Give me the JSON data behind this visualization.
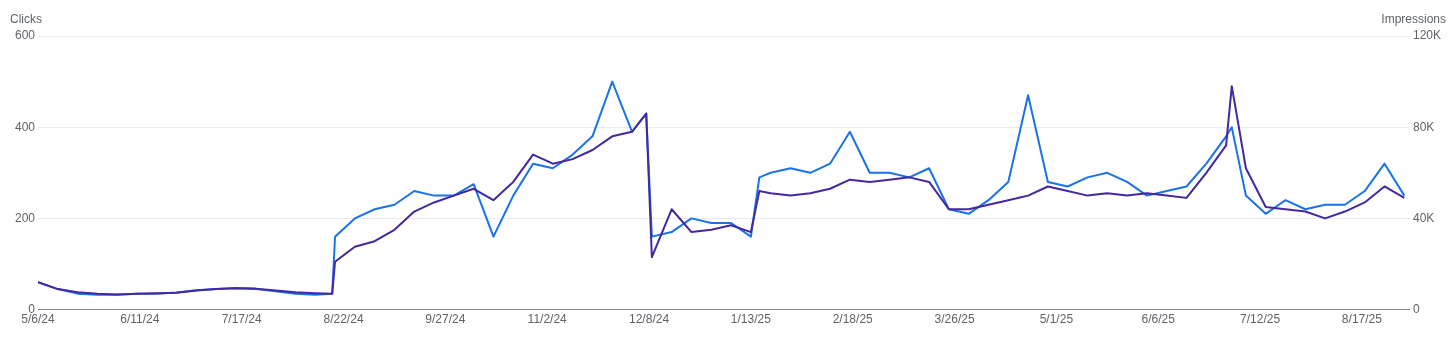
{
  "chart_data": {
    "type": "line",
    "ylabel": "Clicks",
    "y2label": "Impressions",
    "x": [
      "2024-05-06",
      "2024-05-13",
      "2024-05-20",
      "2024-05-27",
      "2024-06-03",
      "2024-06-10",
      "2024-06-17",
      "2024-06-24",
      "2024-07-01",
      "2024-07-08",
      "2024-07-15",
      "2024-07-22",
      "2024-07-29",
      "2024-08-05",
      "2024-08-12",
      "2024-08-18",
      "2024-08-19",
      "2024-08-26",
      "2024-09-02",
      "2024-09-09",
      "2024-09-16",
      "2024-09-23",
      "2024-09-30",
      "2024-10-07",
      "2024-10-14",
      "2024-10-21",
      "2024-10-28",
      "2024-11-04",
      "2024-11-11",
      "2024-11-18",
      "2024-11-25",
      "2024-12-02",
      "2024-12-07",
      "2024-12-09",
      "2024-12-16",
      "2024-12-23",
      "2024-12-30",
      "2025-01-06",
      "2025-01-13",
      "2025-01-16",
      "2025-01-20",
      "2025-01-27",
      "2025-02-03",
      "2025-02-10",
      "2025-02-17",
      "2025-02-24",
      "2025-03-03",
      "2025-03-10",
      "2025-03-17",
      "2025-03-24",
      "2025-03-31",
      "2025-04-07",
      "2025-04-14",
      "2025-04-21",
      "2025-04-28",
      "2025-05-05",
      "2025-05-12",
      "2025-05-19",
      "2025-05-26",
      "2025-06-02",
      "2025-06-09",
      "2025-06-16",
      "2025-06-23",
      "2025-06-30",
      "2025-07-02",
      "2025-07-07",
      "2025-07-14",
      "2025-07-21",
      "2025-07-28",
      "2025-08-04",
      "2025-08-11",
      "2025-08-18",
      "2025-08-25",
      "2025-09-01"
    ],
    "series": [
      {
        "color": "#4527a0",
        "values": [
          60,
          45,
          38,
          35,
          33,
          35,
          36,
          37,
          42,
          45,
          47,
          46,
          42,
          38,
          36,
          35,
          105,
          138,
          150,
          175,
          215,
          235,
          250,
          265,
          240,
          280,
          340,
          320,
          330,
          350,
          380,
          390,
          430,
          115,
          220,
          170,
          175,
          185,
          170,
          260,
          255,
          250,
          255,
          265,
          285,
          280,
          285,
          290,
          280,
          220,
          220,
          230,
          240,
          250,
          270,
          260,
          250,
          255,
          250,
          255,
          250,
          245,
          300,
          360,
          490,
          310,
          225,
          220,
          215,
          200,
          215,
          235,
          270,
          245
        ]
      },
      {
        "color": "#1a73e8",
        "axis": "y2",
        "values": [
          12000,
          9000,
          7000,
          6500,
          6500,
          7000,
          7000,
          7500,
          8500,
          9000,
          9500,
          9000,
          8000,
          7000,
          6500,
          7000,
          32000,
          40000,
          44000,
          46000,
          52000,
          50000,
          50000,
          55000,
          32000,
          50000,
          64000,
          62000,
          68000,
          76000,
          100000,
          78000,
          86000,
          32000,
          34000,
          40000,
          38000,
          38000,
          32000,
          58000,
          60000,
          62000,
          60000,
          64000,
          78000,
          60000,
          60000,
          58000,
          62000,
          44000,
          42000,
          48000,
          56000,
          94000,
          56000,
          54000,
          58000,
          60000,
          56000,
          50000,
          52000,
          54000,
          64000,
          76000,
          80000,
          50000,
          42000,
          48000,
          44000,
          46000,
          46000,
          52000,
          64000,
          50000
        ]
      }
    ],
    "xlim": [
      "2024-05-06",
      "2025-09-03"
    ],
    "xticks": [
      {
        "value": "2024-05-06",
        "label": "5/6/24"
      },
      {
        "value": "2024-06-11",
        "label": "6/11/24"
      },
      {
        "value": "2024-07-17",
        "label": "7/17/24"
      },
      {
        "value": "2024-08-22",
        "label": "8/22/24"
      },
      {
        "value": "2024-09-27",
        "label": "9/27/24"
      },
      {
        "value": "2024-11-02",
        "label": "11/2/24"
      },
      {
        "value": "2024-12-08",
        "label": "12/8/24"
      },
      {
        "value": "2025-01-13",
        "label": "1/13/25"
      },
      {
        "value": "2025-02-18",
        "label": "2/18/25"
      },
      {
        "value": "2025-03-26",
        "label": "3/26/25"
      },
      {
        "value": "2025-05-01",
        "label": "5/1/25"
      },
      {
        "value": "2025-06-06",
        "label": "6/6/25"
      },
      {
        "value": "2025-07-12",
        "label": "7/12/25"
      },
      {
        "value": "2025-08-17",
        "label": "8/17/25"
      }
    ],
    "ylim": [
      0,
      600
    ],
    "yticks": [
      0,
      200,
      400,
      600
    ],
    "y2lim": [
      0,
      120000
    ],
    "y2ticks": [
      0,
      {
        "value": 40000,
        "label": "40K"
      },
      {
        "value": 80000,
        "label": "80K"
      },
      {
        "value": 120000,
        "label": "120K"
      }
    ],
    "grid": "y",
    "legend": false,
    "marker": "none",
    "line_style": "solid"
  }
}
